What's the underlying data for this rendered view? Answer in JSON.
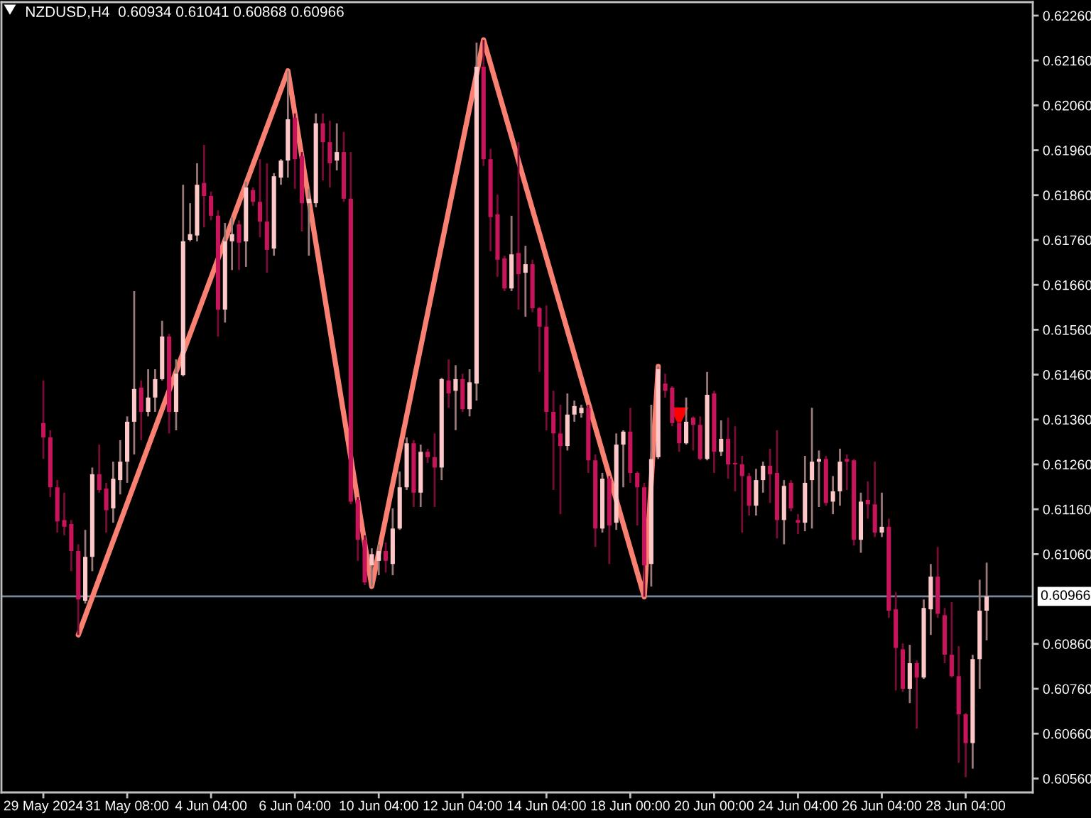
{
  "chart_data": {
    "type": "candlestick",
    "title": "NZDUSD,H4  0.60934 0.61041 0.60868 0.60966",
    "categories": [
      "29 May 2024",
      null,
      null,
      null,
      null,
      null,
      null,
      null,
      null,
      null,
      null,
      null,
      "31 May 08:00",
      null,
      null,
      null,
      null,
      null,
      null,
      null,
      null,
      null,
      null,
      null,
      "4 Jun 04:00",
      null,
      null,
      null,
      null,
      null,
      null,
      null,
      null,
      null,
      null,
      null,
      "6 Jun 04:00",
      null,
      null,
      null,
      null,
      null,
      null,
      null,
      null,
      null,
      null,
      null,
      "10 Jun 04:00",
      null,
      null,
      null,
      null,
      null,
      null,
      null,
      null,
      null,
      null,
      null,
      "12 Jun 04:00",
      null,
      null,
      null,
      null,
      null,
      null,
      null,
      null,
      null,
      null,
      null,
      "14 Jun 04:00",
      null,
      null,
      null,
      null,
      null,
      null,
      null,
      null,
      null,
      null,
      null,
      "18 Jun 00:00",
      null,
      null,
      null,
      null,
      null,
      null,
      null,
      null,
      null,
      null,
      null,
      "20 Jun 00:00",
      null,
      null,
      null,
      null,
      null,
      null,
      null,
      null,
      null,
      null,
      null,
      "24 Jun 04:00",
      null,
      null,
      null,
      null,
      null,
      null,
      null,
      null,
      null,
      null,
      null,
      "26 Jun 04:00",
      null,
      null,
      null,
      null,
      null,
      null,
      null,
      null,
      null,
      null,
      null,
      "28 Jun 04:00",
      null,
      null,
      null
    ],
    "ohlc": [
      [
        0.61352,
        0.61447,
        0.61272,
        0.6132
      ],
      [
        0.6132,
        0.61336,
        0.61187,
        0.61209
      ],
      [
        0.61209,
        0.61225,
        0.61108,
        0.61133
      ],
      [
        0.61136,
        0.61197,
        0.61102,
        0.61121
      ],
      [
        0.61127,
        0.61136,
        0.61022,
        0.61067
      ],
      [
        0.61067,
        0.61082,
        0.6088,
        0.60959
      ],
      [
        0.60956,
        0.61114,
        0.6095,
        0.61054
      ],
      [
        0.61054,
        0.61253,
        0.61022,
        0.61238
      ],
      [
        0.61238,
        0.61304,
        0.61197,
        0.61203
      ],
      [
        0.61206,
        0.61219,
        0.61108,
        0.61158
      ],
      [
        0.61162,
        0.61266,
        0.6113,
        0.61228
      ],
      [
        0.61225,
        0.61314,
        0.61193,
        0.61266
      ],
      [
        0.61266,
        0.61367,
        0.61219,
        0.61355
      ],
      [
        0.61355,
        0.61646,
        0.61282,
        0.61428
      ],
      [
        0.61431,
        0.61447,
        0.61314,
        0.61377
      ],
      [
        0.61377,
        0.61472,
        0.61367,
        0.61409
      ],
      [
        0.61409,
        0.61472,
        0.61377,
        0.6145
      ],
      [
        0.6145,
        0.6158,
        0.61447,
        0.61545
      ],
      [
        0.61545,
        0.61551,
        0.61329,
        0.61377
      ],
      [
        0.61377,
        0.61494,
        0.61336,
        0.61462
      ],
      [
        0.61459,
        0.61883,
        0.61456,
        0.61757
      ],
      [
        0.6176,
        0.61842,
        0.61757,
        0.61773
      ],
      [
        0.6177,
        0.61931,
        0.61757,
        0.61883
      ],
      [
        0.61887,
        0.61972,
        0.61788,
        0.61858
      ],
      [
        0.61858,
        0.61868,
        0.61804,
        0.61814
      ],
      [
        0.61814,
        0.61826,
        0.61545,
        0.61605
      ],
      [
        0.61605,
        0.61798,
        0.61576,
        0.61757
      ],
      [
        0.61757,
        0.61811,
        0.61693,
        0.61773
      ],
      [
        0.61795,
        0.61804,
        0.61693,
        0.61754
      ],
      [
        0.61757,
        0.6189,
        0.617,
        0.61877
      ],
      [
        0.61871,
        0.61877,
        0.61836,
        0.61845
      ],
      [
        0.61845,
        0.6194,
        0.61766,
        0.61801
      ],
      [
        0.61801,
        0.61931,
        0.61687,
        0.61738
      ],
      [
        0.61741,
        0.61909,
        0.61725,
        0.61902
      ],
      [
        0.61899,
        0.6194,
        0.61883,
        0.61937
      ],
      [
        0.61937,
        0.62137,
        0.61899,
        0.62029
      ],
      [
        0.62032,
        0.62042,
        0.61874,
        0.6194
      ],
      [
        0.61947,
        0.61956,
        0.61779,
        0.61842
      ],
      [
        0.61842,
        0.61874,
        0.61725,
        0.61852
      ],
      [
        0.61842,
        0.62042,
        0.61833,
        0.6202
      ],
      [
        0.6202,
        0.62042,
        0.61893,
        0.61978
      ],
      [
        0.61978,
        0.62026,
        0.61877,
        0.61931
      ],
      [
        0.61937,
        0.6202,
        0.61915,
        0.61956
      ],
      [
        0.61956,
        0.62001,
        0.61845,
        0.61852
      ],
      [
        0.61852,
        0.61956,
        0.61171,
        0.61177
      ],
      [
        0.61181,
        0.61187,
        0.61045,
        0.61092
      ],
      [
        0.61092,
        0.61102,
        0.60991,
        0.60997
      ],
      [
        0.61035,
        0.61073,
        0.60988,
        0.6106
      ],
      [
        0.61045,
        0.61082,
        0.61013,
        0.61067
      ],
      [
        0.61067,
        0.61086,
        0.61019,
        0.61045
      ],
      [
        0.61038,
        0.61162,
        0.61013,
        0.61117
      ],
      [
        0.61117,
        0.61244,
        0.61114,
        0.61209
      ],
      [
        0.61209,
        0.6132,
        0.61203,
        0.61307
      ],
      [
        0.61307,
        0.61314,
        0.61165,
        0.61197
      ],
      [
        0.61197,
        0.61304,
        0.61165,
        0.61288
      ],
      [
        0.61288,
        0.61295,
        0.61263,
        0.61276
      ],
      [
        0.61276,
        0.61329,
        0.61165,
        0.61253
      ],
      [
        0.61253,
        0.61453,
        0.61225,
        0.6145
      ],
      [
        0.61447,
        0.61494,
        0.61386,
        0.61418
      ],
      [
        0.61424,
        0.61481,
        0.61336,
        0.6145
      ],
      [
        0.6145,
        0.61462,
        0.61377,
        0.61383
      ],
      [
        0.61383,
        0.61472,
        0.61367,
        0.61443
      ],
      [
        0.6144,
        0.622,
        0.61402,
        0.62146
      ],
      [
        0.62146,
        0.62206,
        0.61925,
        0.6194
      ],
      [
        0.6194,
        0.61963,
        0.61735,
        0.61811
      ],
      [
        0.61817,
        0.61861,
        0.61678,
        0.61716
      ],
      [
        0.61719,
        0.61725,
        0.61646,
        0.61652
      ],
      [
        0.61652,
        0.61814,
        0.61646,
        0.61728
      ],
      [
        0.61731,
        0.61978,
        0.61605,
        0.61684
      ],
      [
        0.61687,
        0.61747,
        0.61589,
        0.61706
      ],
      [
        0.61706,
        0.61716,
        0.61599,
        0.61608
      ],
      [
        0.61608,
        0.61611,
        0.61466,
        0.61567
      ],
      [
        0.61567,
        0.61614,
        0.61336,
        0.61377
      ],
      [
        0.61377,
        0.61424,
        0.61203,
        0.61329
      ],
      [
        0.61329,
        0.61393,
        0.61149,
        0.61301
      ],
      [
        0.61301,
        0.61418,
        0.61291,
        0.61371
      ],
      [
        0.61371,
        0.61402,
        0.61355,
        0.6139
      ],
      [
        0.61374,
        0.61393,
        0.61364,
        0.61386
      ],
      [
        0.61386,
        0.61393,
        0.61241,
        0.61269
      ],
      [
        0.61269,
        0.61282,
        0.61076,
        0.61117
      ],
      [
        0.61117,
        0.61241,
        0.61108,
        0.61228
      ],
      [
        0.61228,
        0.61234,
        0.61038,
        0.61124
      ],
      [
        0.6113,
        0.61329,
        0.61114,
        0.61304
      ],
      [
        0.61304,
        0.61336,
        0.61209,
        0.61333
      ],
      [
        0.61333,
        0.61386,
        0.61219,
        0.61241
      ],
      [
        0.61241,
        0.61244,
        0.61124,
        0.61209
      ],
      [
        0.61209,
        0.61219,
        0.60965,
        0.61035
      ],
      [
        0.61038,
        0.61393,
        0.60988,
        0.61272
      ],
      [
        0.61276,
        0.61478,
        0.61272,
        0.61472
      ],
      [
        0.6144,
        0.61462,
        0.61409,
        0.61424
      ],
      [
        0.61431,
        0.61434,
        0.61345,
        0.61352
      ],
      [
        0.61352,
        0.61355,
        0.61288,
        0.61307
      ],
      [
        0.61307,
        0.61409,
        0.61304,
        0.61355
      ],
      [
        0.61364,
        0.61367,
        0.61291,
        0.61348
      ],
      [
        0.61348,
        0.61367,
        0.61269,
        0.61272
      ],
      [
        0.61272,
        0.61466,
        0.61269,
        0.61415
      ],
      [
        0.61418,
        0.61424,
        0.61241,
        0.61288
      ],
      [
        0.61288,
        0.61358,
        0.61279,
        0.61317
      ],
      [
        0.61317,
        0.61364,
        0.61228,
        0.6126
      ],
      [
        0.61263,
        0.61345,
        0.612,
        0.6126
      ],
      [
        0.6126,
        0.61279,
        0.61108,
        0.61234
      ],
      [
        0.61234,
        0.61241,
        0.61146,
        0.61168
      ],
      [
        0.61168,
        0.6125,
        0.61146,
        0.61225
      ],
      [
        0.61225,
        0.61266,
        0.61197,
        0.61257
      ],
      [
        0.61257,
        0.61295,
        0.61174,
        0.61238
      ],
      [
        0.61241,
        0.61336,
        0.61095,
        0.61136
      ],
      [
        0.61136,
        0.61225,
        0.61082,
        0.61212
      ],
      [
        0.61219,
        0.61225,
        0.61155,
        0.61162
      ],
      [
        0.61136,
        0.61149,
        0.61105,
        0.6113
      ],
      [
        0.6113,
        0.61279,
        0.61111,
        0.61219
      ],
      [
        0.61225,
        0.61386,
        0.61117,
        0.61266
      ],
      [
        0.61266,
        0.61291,
        0.61165,
        0.61272
      ],
      [
        0.61272,
        0.61279,
        0.61168,
        0.61174
      ],
      [
        0.61177,
        0.61234,
        0.61149,
        0.612
      ],
      [
        0.612,
        0.61295,
        0.61168,
        0.61266
      ],
      [
        0.61272,
        0.61282,
        0.61203,
        0.61266
      ],
      [
        0.61269,
        0.61272,
        0.61079,
        0.61092
      ],
      [
        0.61092,
        0.61197,
        0.61063,
        0.61177
      ],
      [
        0.61181,
        0.61222,
        0.61139,
        0.61171
      ],
      [
        0.61171,
        0.61266,
        0.61098,
        0.61108
      ],
      [
        0.61108,
        0.61197,
        0.61098,
        0.61121
      ],
      [
        0.61121,
        0.61139,
        0.60918,
        0.60934
      ],
      [
        0.60937,
        0.60975,
        0.60756,
        0.60851
      ],
      [
        0.60848,
        0.60861,
        0.60753,
        0.6076
      ],
      [
        0.6076,
        0.60858,
        0.60728,
        0.60817
      ],
      [
        0.60817,
        0.60823,
        0.60671,
        0.60785
      ],
      [
        0.60785,
        0.60959,
        0.60782,
        0.6094
      ],
      [
        0.60937,
        0.61038,
        0.6088,
        0.6101
      ],
      [
        0.6101,
        0.61076,
        0.60918,
        0.60927
      ],
      [
        0.60924,
        0.6094,
        0.60817,
        0.60836
      ],
      [
        0.60836,
        0.60953,
        0.60785,
        0.60788
      ],
      [
        0.60788,
        0.60855,
        0.60595,
        0.60703
      ],
      [
        0.60703,
        0.60706,
        0.60563,
        0.60639
      ],
      [
        0.60639,
        0.60836,
        0.60582,
        0.60826
      ],
      [
        0.60826,
        0.61003,
        0.6076,
        0.60934
      ],
      [
        0.60934,
        0.61041,
        0.60868,
        0.60966
      ]
    ],
    "colors": [
      "#c8145a",
      "#c8145a",
      "#c8145a",
      "#c8145a",
      "#c8145a",
      "#c8145a",
      "#ffc8c8",
      "#ffc8c8",
      "#c8145a",
      "#c8145a",
      "#ffc8c8",
      "#ffc8c8",
      "#ffc8c8",
      "#ffc8c8",
      "#c8145a",
      "#ffc8c8",
      "#ffc8c8",
      "#ffc8c8",
      "#c8145a",
      "#ffc8c8",
      "#ffc8c8",
      "#ffc8c8",
      "#ffc8c8",
      "#c8145a",
      "#c8145a",
      "#c8145a",
      "#ffc8c8",
      "#ffc8c8",
      "#c8145a",
      "#ffc8c8",
      "#c8145a",
      "#c8145a",
      "#c8145a",
      "#ffc8c8",
      "#ffc8c8",
      "#ffc8c8",
      "#c8145a",
      "#c8145a",
      "#ffc8c8",
      "#ffc8c8",
      "#c8145a",
      "#c8145a",
      "#ffc8c8",
      "#c8145a",
      "#c8145a",
      "#c8145a",
      "#c8145a",
      "#ffc8c8",
      "#ffc8c8",
      "#c8145a",
      "#ffc8c8",
      "#ffc8c8",
      "#ffc8c8",
      "#c8145a",
      "#ffc8c8",
      "#c8145a",
      "#c8145a",
      "#ffc8c8",
      "#c8145a",
      "#ffc8c8",
      "#c8145a",
      "#ffc8c8",
      "#ffc8c8",
      "#c8145a",
      "#c8145a",
      "#c8145a",
      "#c8145a",
      "#ffc8c8",
      "#c8145a",
      "#ffc8c8",
      "#c8145a",
      "#c8145a",
      "#c8145a",
      "#c8145a",
      "#c8145a",
      "#ffc8c8",
      "#ffc8c8",
      "#ffc8c8",
      "#c8145a",
      "#c8145a",
      "#ffc8c8",
      "#c8145a",
      "#ffc8c8",
      "#ffc8c8",
      "#c8145a",
      "#c8145a",
      "#c8145a",
      "#ffc8c8",
      "#ffc8c8",
      "#c8145a",
      "#c8145a",
      "#c8145a",
      "#ffc8c8",
      "#c8145a",
      "#c8145a",
      "#ffc8c8",
      "#c8145a",
      "#ffc8c8",
      "#c8145a",
      "#c8145a",
      "#c8145a",
      "#c8145a",
      "#ffc8c8",
      "#ffc8c8",
      "#c8145a",
      "#c8145a",
      "#ffc8c8",
      "#c8145a",
      "#c8145a",
      "#ffc8c8",
      "#ffc8c8",
      "#ffc8c8",
      "#c8145a",
      "#ffc8c8",
      "#ffc8c8",
      "#c8145a",
      "#c8145a",
      "#ffc8c8",
      "#c8145a",
      "#c8145a",
      "#ffc8c8",
      "#c8145a",
      "#c8145a",
      "#c8145a",
      "#ffc8c8",
      "#c8145a",
      "#ffc8c8",
      "#ffc8c8",
      "#c8145a",
      "#c8145a",
      "#c8145a",
      "#c8145a",
      "#c8145a",
      "#ffc8c8",
      "#ffc8c8",
      "#ffc8c8"
    ],
    "series": [
      {
        "type": "line",
        "color": "#fa8072",
        "values": [
          null,
          null,
          null,
          null,
          null,
          0.6088,
          null,
          null,
          null,
          null,
          null,
          null,
          null,
          null,
          null,
          null,
          null,
          null,
          null,
          null,
          null,
          null,
          null,
          null,
          null,
          null,
          null,
          null,
          null,
          null,
          null,
          null,
          null,
          null,
          null,
          0.62137,
          null,
          null,
          null,
          null,
          null,
          null,
          null,
          null,
          null,
          null,
          null,
          0.60988,
          null,
          null,
          null,
          null,
          null,
          null,
          null,
          null,
          null,
          null,
          null,
          null,
          null,
          null,
          null,
          0.62206,
          null,
          null,
          null,
          null,
          null,
          null,
          null,
          null,
          null,
          null,
          null,
          null,
          null,
          null,
          null,
          null,
          null,
          null,
          null,
          null,
          null,
          null,
          0.60965,
          null,
          0.61478,
          null,
          null,
          null,
          null,
          null,
          null,
          null,
          null,
          null,
          null,
          null,
          null,
          null,
          null,
          null,
          null,
          null,
          null,
          null,
          null,
          null,
          null,
          null,
          null,
          null,
          null,
          null,
          null,
          null,
          null,
          null,
          null,
          null,
          null,
          null,
          null,
          null,
          null,
          null,
          null,
          null,
          null,
          null,
          null,
          null,
          null,
          null
        ]
      },
      {
        "type": "scatter",
        "marker": "triangle",
        "color": "#ff0000",
        "values": [
          null,
          null,
          null,
          null,
          null,
          null,
          null,
          null,
          null,
          null,
          null,
          null,
          null,
          null,
          null,
          null,
          null,
          null,
          null,
          null,
          null,
          null,
          null,
          null,
          null,
          null,
          null,
          null,
          null,
          null,
          null,
          null,
          null,
          null,
          null,
          null,
          null,
          null,
          null,
          null,
          null,
          null,
          null,
          null,
          null,
          null,
          null,
          null,
          null,
          null,
          null,
          null,
          null,
          null,
          null,
          null,
          null,
          null,
          null,
          null,
          null,
          null,
          null,
          null,
          null,
          null,
          null,
          null,
          null,
          null,
          null,
          null,
          null,
          null,
          null,
          null,
          null,
          null,
          null,
          null,
          null,
          null,
          null,
          null,
          null,
          null,
          null,
          null,
          null,
          null,
          null,
          0.61366,
          null,
          null,
          null,
          null,
          null,
          null,
          null,
          null,
          null,
          null,
          null,
          null,
          null,
          null,
          null,
          null,
          null,
          null,
          null,
          null,
          null,
          null,
          null,
          null,
          null,
          null,
          null,
          null,
          null,
          null,
          null,
          null,
          null,
          null,
          null,
          null,
          null,
          null,
          null,
          null,
          null,
          null,
          null,
          null
        ]
      }
    ],
    "ylim": [
      0.60529,
      0.6229
    ],
    "yticks": [
      {
        "value": 0.6056,
        "label": "0.60560"
      },
      {
        "value": 0.6066,
        "label": "0.60660"
      },
      {
        "value": 0.6076,
        "label": "0.60760"
      },
      {
        "value": 0.6086,
        "label": "0.60860"
      },
      {
        "value": 0.6106,
        "label": "0.61060"
      },
      {
        "value": 0.6116,
        "label": "0.61160"
      },
      {
        "value": 0.6126,
        "label": "0.61260"
      },
      {
        "value": 0.6136,
        "label": "0.61360"
      },
      {
        "value": 0.6146,
        "label": "0.61460"
      },
      {
        "value": 0.6156,
        "label": "0.61560"
      },
      {
        "value": 0.6166,
        "label": "0.61660"
      },
      {
        "value": 0.6176,
        "label": "0.61760"
      },
      {
        "value": 0.6186,
        "label": "0.61860"
      },
      {
        "value": 0.6196,
        "label": "0.61960"
      },
      {
        "value": 0.6206,
        "label": "0.62060"
      },
      {
        "value": 0.6216,
        "label": "0.62160"
      },
      {
        "value": 0.6226,
        "label": "0.62260"
      }
    ],
    "ref_lines": [
      {
        "axis": "y",
        "value": 0.60966,
        "label": "0.60966",
        "color": "#778899"
      }
    ]
  }
}
